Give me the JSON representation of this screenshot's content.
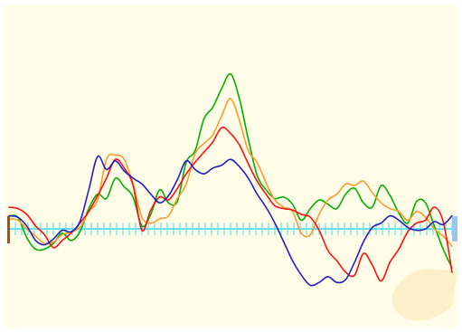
{
  "colors": {
    "panel_background": "#fffde8",
    "baseline": "#66e0f0",
    "start_marker": "#8b5a2b",
    "end_marker": "#9ec4f0",
    "watermark": "#fcebc0"
  },
  "chart_data": {
    "type": "line",
    "title": "",
    "xlabel": "",
    "ylabel": "",
    "x_range": [
      0,
      100
    ],
    "y_range": [
      -45,
      100
    ],
    "baseline_y": 0,
    "baseline_ticks": 70,
    "grid": false,
    "legend": "none",
    "series": [
      {
        "color": "#00b000",
        "points": [
          [
            0,
            9
          ],
          [
            2,
            8
          ],
          [
            4,
            -6
          ],
          [
            6,
            -14
          ],
          [
            8,
            -14
          ],
          [
            10,
            -10
          ],
          [
            12,
            -3
          ],
          [
            14,
            -8
          ],
          [
            16,
            -2
          ],
          [
            18,
            14
          ],
          [
            20,
            24
          ],
          [
            22,
            21
          ],
          [
            24,
            35
          ],
          [
            26,
            29
          ],
          [
            28,
            22
          ],
          [
            30,
            2
          ],
          [
            32,
            10
          ],
          [
            34,
            27
          ],
          [
            36,
            18
          ],
          [
            38,
            19
          ],
          [
            40,
            46
          ],
          [
            42,
            54
          ],
          [
            44,
            76
          ],
          [
            46,
            84
          ],
          [
            48,
            97
          ],
          [
            50,
            107
          ],
          [
            52,
            90
          ],
          [
            54,
            62
          ],
          [
            56,
            37
          ],
          [
            58,
            27
          ],
          [
            60,
            21
          ],
          [
            62,
            22
          ],
          [
            64,
            17
          ],
          [
            66,
            6
          ],
          [
            68,
            14
          ],
          [
            70,
            20
          ],
          [
            72,
            17
          ],
          [
            74,
            14
          ],
          [
            76,
            24
          ],
          [
            78,
            28
          ],
          [
            80,
            18
          ],
          [
            82,
            15
          ],
          [
            84,
            30
          ],
          [
            86,
            23
          ],
          [
            88,
            11
          ],
          [
            90,
            4
          ],
          [
            92,
            19
          ],
          [
            94,
            18
          ],
          [
            96,
            2
          ],
          [
            98,
            -14
          ],
          [
            100,
            -27
          ]
        ]
      },
      {
        "color": "#ff9a2e",
        "points": [
          [
            0,
            7
          ],
          [
            2,
            6
          ],
          [
            4,
            0
          ],
          [
            6,
            -5
          ],
          [
            8,
            -10
          ],
          [
            10,
            -9
          ],
          [
            12,
            -4
          ],
          [
            14,
            -2
          ],
          [
            16,
            1
          ],
          [
            18,
            12
          ],
          [
            20,
            20
          ],
          [
            22,
            48
          ],
          [
            24,
            51
          ],
          [
            26,
            48
          ],
          [
            28,
            31
          ],
          [
            30,
            8
          ],
          [
            32,
            4
          ],
          [
            34,
            7
          ],
          [
            36,
            9
          ],
          [
            38,
            21
          ],
          [
            40,
            31
          ],
          [
            42,
            52
          ],
          [
            44,
            59
          ],
          [
            46,
            65
          ],
          [
            48,
            78
          ],
          [
            50,
            90
          ],
          [
            52,
            75
          ],
          [
            54,
            54
          ],
          [
            56,
            46
          ],
          [
            58,
            32
          ],
          [
            60,
            20
          ],
          [
            62,
            15
          ],
          [
            64,
            12
          ],
          [
            66,
            -3
          ],
          [
            68,
            -4
          ],
          [
            70,
            10
          ],
          [
            72,
            20
          ],
          [
            74,
            24
          ],
          [
            76,
            31
          ],
          [
            78,
            30
          ],
          [
            80,
            33
          ],
          [
            82,
            25
          ],
          [
            84,
            18
          ],
          [
            86,
            14
          ],
          [
            88,
            12
          ],
          [
            90,
            6
          ],
          [
            92,
            12
          ],
          [
            94,
            8
          ],
          [
            96,
            0
          ],
          [
            98,
            -5
          ],
          [
            100,
            -12
          ]
        ]
      },
      {
        "color": "#ff1010",
        "points": [
          [
            0,
            15
          ],
          [
            2,
            14
          ],
          [
            4,
            10
          ],
          [
            6,
            2
          ],
          [
            8,
            -4
          ],
          [
            10,
            -13
          ],
          [
            12,
            -8
          ],
          [
            14,
            -3
          ],
          [
            16,
            4
          ],
          [
            18,
            12
          ],
          [
            20,
            23
          ],
          [
            22,
            35
          ],
          [
            24,
            48
          ],
          [
            26,
            42
          ],
          [
            28,
            30
          ],
          [
            30,
            -1
          ],
          [
            32,
            13
          ],
          [
            34,
            22
          ],
          [
            36,
            20
          ],
          [
            38,
            28
          ],
          [
            40,
            38
          ],
          [
            42,
            46
          ],
          [
            44,
            53
          ],
          [
            46,
            60
          ],
          [
            48,
            70
          ],
          [
            50,
            66
          ],
          [
            52,
            58
          ],
          [
            54,
            45
          ],
          [
            56,
            33
          ],
          [
            58,
            24
          ],
          [
            60,
            16
          ],
          [
            62,
            14
          ],
          [
            64,
            13
          ],
          [
            66,
            10
          ],
          [
            68,
            8
          ],
          [
            70,
            -1
          ],
          [
            72,
            -15
          ],
          [
            74,
            -22
          ],
          [
            76,
            -30
          ],
          [
            78,
            -32
          ],
          [
            80,
            -17
          ],
          [
            82,
            -25
          ],
          [
            84,
            -36
          ],
          [
            86,
            -23
          ],
          [
            88,
            -14
          ],
          [
            90,
            -2
          ],
          [
            92,
            4
          ],
          [
            94,
            6
          ],
          [
            96,
            15
          ],
          [
            98,
            5
          ],
          [
            100,
            -30
          ]
        ]
      },
      {
        "color": "#2020c0",
        "points": [
          [
            0,
            9
          ],
          [
            2,
            8
          ],
          [
            4,
            2
          ],
          [
            6,
            -8
          ],
          [
            8,
            -11
          ],
          [
            10,
            -7
          ],
          [
            12,
            -1
          ],
          [
            14,
            -2
          ],
          [
            16,
            5
          ],
          [
            18,
            27
          ],
          [
            20,
            50
          ],
          [
            22,
            41
          ],
          [
            24,
            47
          ],
          [
            26,
            40
          ],
          [
            28,
            35
          ],
          [
            30,
            31
          ],
          [
            32,
            24
          ],
          [
            34,
            18
          ],
          [
            36,
            23
          ],
          [
            38,
            34
          ],
          [
            40,
            47
          ],
          [
            42,
            41
          ],
          [
            44,
            38
          ],
          [
            46,
            42
          ],
          [
            48,
            44
          ],
          [
            50,
            48
          ],
          [
            52,
            43
          ],
          [
            54,
            35
          ],
          [
            56,
            24
          ],
          [
            58,
            15
          ],
          [
            60,
            4
          ],
          [
            62,
            -9
          ],
          [
            64,
            -22
          ],
          [
            66,
            -32
          ],
          [
            68,
            -39
          ],
          [
            70,
            -37
          ],
          [
            72,
            -33
          ],
          [
            74,
            -37
          ],
          [
            76,
            -35
          ],
          [
            78,
            -23
          ],
          [
            80,
            -9
          ],
          [
            82,
            1
          ],
          [
            84,
            4
          ],
          [
            86,
            9
          ],
          [
            88,
            6
          ],
          [
            90,
            1
          ],
          [
            92,
            -1
          ],
          [
            94,
            0
          ],
          [
            96,
            5
          ],
          [
            98,
            3
          ],
          [
            100,
            9
          ]
        ]
      }
    ]
  }
}
